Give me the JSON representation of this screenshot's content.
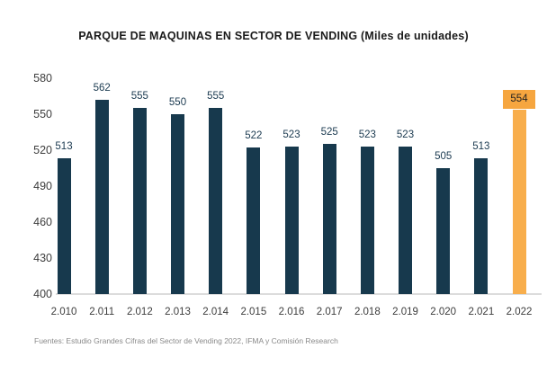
{
  "title": "PARQUE DE MAQUINAS EN SECTOR DE VENDING (Miles de unidades)",
  "footer": "Fuentes: Estudio Grandes Cifras del Sector de Vending 2022, IFMA y Comisión Research",
  "colors": {
    "bar": "#17394d",
    "highlight_bar": "#f8ae4c",
    "highlight_label_bg": "#f6a63f",
    "value_label": "#1b3a50",
    "axis_label": "#3d3d3d",
    "baseline": "#dcdcdc",
    "footer_text": "#8a8a8a"
  },
  "chart_data": {
    "type": "bar",
    "title": "PARQUE DE MAQUINAS EN SECTOR DE VENDING (Miles de unidades)",
    "categories": [
      "2.010",
      "2.011",
      "2.012",
      "2.013",
      "2.014",
      "2.015",
      "2.016",
      "2.017",
      "2.018",
      "2.019",
      "2.020",
      "2.021",
      "2.022"
    ],
    "values": [
      513,
      562,
      555,
      550,
      555,
      522,
      523,
      525,
      523,
      523,
      505,
      513,
      554
    ],
    "highlighted_category": "2.022",
    "xlabel": "",
    "ylabel": "",
    "ylim": [
      400,
      580
    ],
    "yticks": [
      400,
      430,
      460,
      490,
      520,
      550,
      580
    ],
    "grid": false,
    "data_labels": true,
    "legend": "none"
  }
}
